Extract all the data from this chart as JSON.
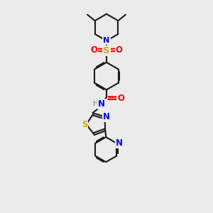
{
  "background_color": "#ebebeb",
  "bond_color": "#1a1a1a",
  "N_color": "#0000ff",
  "S_color": "#ccaa00",
  "O_color": "#ff0000",
  "H_color": "#4a9090",
  "figsize": [
    3.0,
    3.0
  ],
  "dpi": 100,
  "xlim": [
    0,
    10
  ],
  "ylim": [
    0,
    14
  ]
}
